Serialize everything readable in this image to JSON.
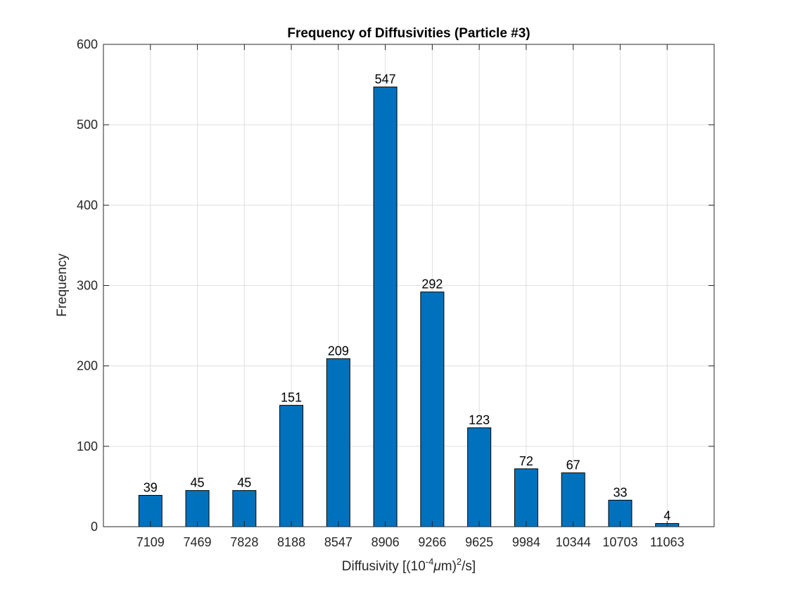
{
  "chart_data": {
    "type": "bar",
    "title": "Frequency of Diffusivities (Particle #3)",
    "xlabel": {
      "prefix": "Diffusivity [(10",
      "exponent": "-4",
      "mu": "μ",
      "unit": "m)",
      "power": "2",
      "suffix": "/s]"
    },
    "ylabel": "Frequency",
    "categories": [
      "7109",
      "7469",
      "7828",
      "8188",
      "8547",
      "8906",
      "9266",
      "9625",
      "9984",
      "10344",
      "10703",
      "11063"
    ],
    "values": [
      39,
      45,
      45,
      151,
      209,
      547,
      292,
      123,
      72,
      67,
      33,
      4
    ],
    "data_labels": [
      "39",
      "45",
      "45",
      "151",
      "209",
      "547",
      "292",
      "123",
      "72",
      "67",
      "33",
      "4"
    ],
    "ylim": [
      0,
      600
    ],
    "yticks": [
      0,
      100,
      200,
      300,
      400,
      500,
      600
    ],
    "ytick_labels": [
      "0",
      "100",
      "200",
      "300",
      "400",
      "500",
      "600"
    ],
    "grid": true,
    "bar_color": "#0072BD",
    "bar_edge_color": "#000000",
    "grid_color": "#DFDFDF",
    "axis_color": "#262626"
  }
}
